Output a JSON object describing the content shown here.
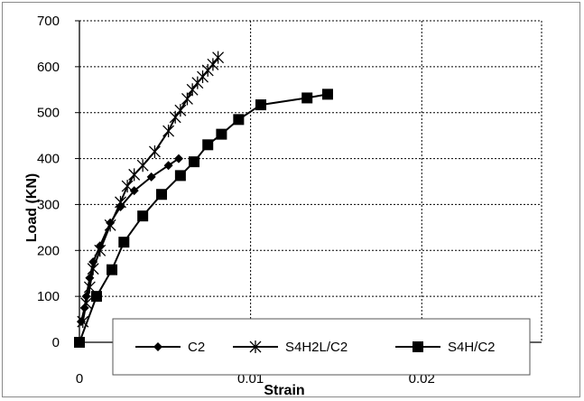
{
  "chart_data": {
    "type": "line",
    "xlabel": "Strain",
    "ylabel": "Load (KN)",
    "xlim": [
      0,
      0.027
    ],
    "ylim": [
      0,
      700
    ],
    "x_ticks": [
      {
        "value": 0,
        "label": "0"
      },
      {
        "value": 0.01,
        "label": "0.01"
      },
      {
        "value": 0.02,
        "label": "0.02"
      }
    ],
    "y_ticks": [
      {
        "value": 0,
        "label": "0"
      },
      {
        "value": 100,
        "label": "100"
      },
      {
        "value": 200,
        "label": "200"
      },
      {
        "value": 300,
        "label": "300"
      },
      {
        "value": 400,
        "label": "400"
      },
      {
        "value": 500,
        "label": "500"
      },
      {
        "value": 600,
        "label": "600"
      },
      {
        "value": 700,
        "label": "700"
      }
    ],
    "grid": {
      "horizontal": true,
      "vertical": true,
      "style": "dotted"
    },
    "legend_position": "bottom",
    "series": [
      {
        "name": "C2",
        "marker": "diamond",
        "color": "#000000",
        "points": [
          [
            0.0001,
            45
          ],
          [
            0.0003,
            75
          ],
          [
            0.0004,
            100
          ],
          [
            0.0006,
            140
          ],
          [
            0.0008,
            175
          ],
          [
            0.0012,
            210
          ],
          [
            0.0018,
            260
          ],
          [
            0.0024,
            295
          ],
          [
            0.0032,
            330
          ],
          [
            0.0042,
            360
          ],
          [
            0.0052,
            385
          ],
          [
            0.0058,
            400
          ]
        ]
      },
      {
        "name": "S4H2L/C2",
        "marker": "star",
        "color": "#000000",
        "points": [
          [
            0.0002,
            45
          ],
          [
            0.0004,
            85
          ],
          [
            0.0006,
            120
          ],
          [
            0.0008,
            160
          ],
          [
            0.0012,
            200
          ],
          [
            0.0018,
            255
          ],
          [
            0.0024,
            305
          ],
          [
            0.0028,
            340
          ],
          [
            0.0032,
            365
          ],
          [
            0.0037,
            385
          ],
          [
            0.0044,
            415
          ],
          [
            0.0052,
            460
          ],
          [
            0.0056,
            490
          ],
          [
            0.0059,
            505
          ],
          [
            0.0063,
            530
          ],
          [
            0.0066,
            550
          ],
          [
            0.0069,
            565
          ],
          [
            0.0072,
            578
          ],
          [
            0.0075,
            592
          ],
          [
            0.0078,
            605
          ],
          [
            0.0081,
            620
          ]
        ]
      },
      {
        "name": "S4H/C2",
        "marker": "square",
        "color": "#000000",
        "points": [
          [
            0.0,
            0
          ],
          [
            0.001,
            100
          ],
          [
            0.0019,
            158
          ],
          [
            0.0026,
            218
          ],
          [
            0.0037,
            275
          ],
          [
            0.0048,
            322
          ],
          [
            0.0059,
            363
          ],
          [
            0.0067,
            393
          ],
          [
            0.0075,
            430
          ],
          [
            0.0083,
            453
          ],
          [
            0.0093,
            485
          ],
          [
            0.0106,
            517
          ],
          [
            0.0133,
            532
          ],
          [
            0.0145,
            540
          ]
        ]
      }
    ]
  }
}
